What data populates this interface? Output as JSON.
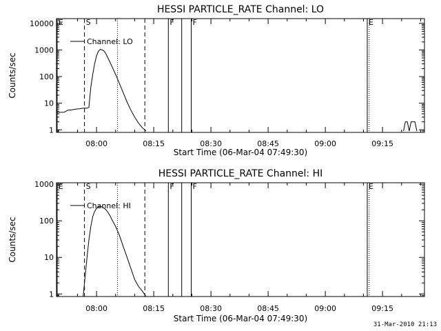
{
  "figure": {
    "timestamp": "31-Mar-2010 21:13",
    "background": "#ffffff",
    "foreground": "#000000"
  },
  "chart_data": [
    {
      "type": "line",
      "title": "HESSI PARTICLE_RATE Channel: LO",
      "xlabel": "Start Time (06-Mar-04 07:49:30)",
      "ylabel": "Counts/sec",
      "yscale": "log",
      "xlim": [
        "07:49:30",
        "09:26:00"
      ],
      "ylim": [
        0.8,
        15000
      ],
      "xticks": [
        "08:00",
        "08:15",
        "08:30",
        "08:45",
        "09:00",
        "09:15"
      ],
      "yticks": [
        {
          "value": 1,
          "label": "1"
        },
        {
          "value": 10,
          "label": "10"
        },
        {
          "value": 100,
          "label": "100"
        },
        {
          "value": 1000,
          "label": "1000"
        },
        {
          "value": 10000,
          "label": "10000"
        }
      ],
      "grid": false,
      "legend": {
        "position": "top-left",
        "entries": [
          "Channel: LO"
        ]
      },
      "series": [
        {
          "name": "Channel: LO",
          "segments": [
            {
              "x": [
                "07:49:30",
                "07:51:30",
                "07:52:30",
                "07:53:30",
                "07:54:30",
                "07:55:30",
                "07:56:30",
                "07:57:30",
                "07:58:00",
                "07:58:30",
                "07:59:00",
                "07:59:30",
                "08:00:00",
                "08:00:30",
                "08:01:00",
                "08:01:30",
                "08:02:00",
                "08:02:30",
                "08:03:00",
                "08:03:30",
                "08:04:00",
                "08:05:00",
                "08:06:00",
                "08:07:00",
                "08:08:00",
                "08:09:00",
                "08:10:00",
                "08:11:00",
                "08:12:00",
                "08:13:00"
              ],
              "y": [
                4.5,
                4.6,
                5.5,
                5.6,
                6,
                6.2,
                6.5,
                6.5,
                7,
                40,
                120,
                300,
                600,
                900,
                1050,
                1000,
                900,
                700,
                500,
                350,
                250,
                120,
                55,
                25,
                11,
                5.5,
                3,
                1.8,
                1.2,
                0.9
              ]
            },
            {
              "x": [
                "09:20:30",
                "09:21:00",
                "09:21:30",
                "09:22:00",
                "09:22:30",
                "09:23:00",
                "09:23:30",
                "09:24:00"
              ],
              "y": [
                0.9,
                2,
                2,
                0.9,
                2,
                2,
                2,
                0.9
              ]
            }
          ]
        }
      ],
      "markers": [
        {
          "label": "E",
          "x": "07:49:40",
          "style": "solid"
        },
        {
          "label": "S",
          "x": "07:56:50",
          "style": "dashed"
        },
        {
          "label": "",
          "x": "08:05:30",
          "style": "dotted"
        },
        {
          "label": "",
          "x": "08:12:40",
          "style": "dashed"
        },
        {
          "label": "F",
          "x": "08:18:50",
          "style": "solid"
        },
        {
          "label": "",
          "x": "08:22:20",
          "style": "solid"
        },
        {
          "label": "F",
          "x": "08:24:50",
          "style": "solid"
        },
        {
          "label": "E",
          "x": "09:11:00",
          "style": "solid"
        },
        {
          "label": "",
          "x": "09:11:30",
          "style": "dotted"
        },
        {
          "label": "",
          "x": "09:26:00",
          "style": "dotted"
        }
      ]
    },
    {
      "type": "line",
      "title": "HESSI PARTICLE_RATE Channel: HI",
      "xlabel": "Start Time (06-Mar-04 07:49:30)",
      "ylabel": "Counts/sec",
      "yscale": "log",
      "xlim": [
        "07:49:30",
        "09:26:00"
      ],
      "ylim": [
        0.85,
        1100
      ],
      "xticks": [
        "08:00",
        "08:15",
        "08:30",
        "08:45",
        "09:00",
        "09:15"
      ],
      "yticks": [
        {
          "value": 1,
          "label": "1"
        },
        {
          "value": 10,
          "label": "10"
        },
        {
          "value": 100,
          "label": "100"
        },
        {
          "value": 1000,
          "label": "1000"
        }
      ],
      "grid": false,
      "legend": {
        "position": "top-left",
        "entries": [
          "Channel: HI"
        ]
      },
      "series": [
        {
          "name": "Channel: HI",
          "segments": [
            {
              "x": [
                "07:56:30",
                "07:57:00",
                "07:57:30",
                "07:58:00",
                "07:58:30",
                "07:59:00",
                "07:59:30",
                "08:00:00",
                "08:00:30",
                "08:01:00",
                "08:01:30",
                "08:02:00",
                "08:02:30",
                "08:03:00",
                "08:03:30",
                "08:04:00",
                "08:05:00",
                "08:06:00",
                "08:07:00",
                "08:08:00",
                "08:09:00",
                "08:10:00",
                "08:11:00",
                "08:12:00",
                "08:12:30",
                "08:13:00"
              ],
              "y": [
                0.85,
                3,
                10,
                30,
                70,
                130,
                180,
                220,
                240,
                250,
                240,
                220,
                200,
                170,
                140,
                110,
                70,
                40,
                20,
                10,
                5,
                2.5,
                1.6,
                1.2,
                1.0,
                0.85
              ]
            }
          ]
        }
      ],
      "markers": [
        {
          "label": "E",
          "x": "07:49:40",
          "style": "solid"
        },
        {
          "label": "S",
          "x": "07:56:50",
          "style": "dashed"
        },
        {
          "label": "",
          "x": "08:05:30",
          "style": "dotted"
        },
        {
          "label": "",
          "x": "08:12:40",
          "style": "dashed"
        },
        {
          "label": "F",
          "x": "08:18:50",
          "style": "solid"
        },
        {
          "label": "",
          "x": "08:22:20",
          "style": "solid"
        },
        {
          "label": "F",
          "x": "08:24:50",
          "style": "solid"
        },
        {
          "label": "E",
          "x": "09:11:00",
          "style": "solid"
        },
        {
          "label": "",
          "x": "09:11:30",
          "style": "dotted"
        },
        {
          "label": "",
          "x": "09:26:00",
          "style": "dotted"
        }
      ]
    }
  ]
}
